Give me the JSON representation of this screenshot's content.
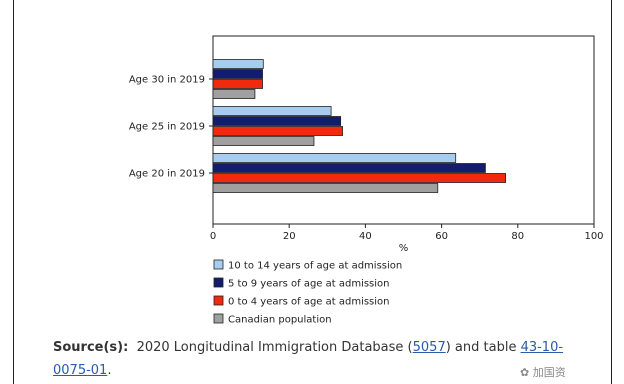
{
  "chart_data": {
    "type": "bar",
    "orientation": "horizontal",
    "categories": [
      "Age 30 in 2019",
      "Age 25 in 2019",
      "Age 20 in 2019"
    ],
    "series": [
      {
        "name": "10 to 14 years of age at admission",
        "color": "#a6cdf0",
        "values": [
          13.2,
          31.0,
          63.7
        ]
      },
      {
        "name": "5 to 9 years of age at admission",
        "color": "#131d6c",
        "values": [
          13.0,
          33.5,
          71.5
        ]
      },
      {
        "name": "0 to 4 years of age at admission",
        "color": "#f02a0c",
        "values": [
          13.0,
          34.0,
          76.8
        ]
      },
      {
        "name": "Canadian population",
        "color": "#a0a0a0",
        "values": [
          11.0,
          26.5,
          59.0
        ]
      }
    ],
    "xlabel": "%",
    "xlim": [
      0,
      100
    ],
    "xticks": [
      "0",
      "20",
      "40",
      "60",
      "80",
      "100"
    ],
    "grid": false,
    "legend": "bottom"
  },
  "source": {
    "label": "Source(s):",
    "text_before": "2020 Longitudinal Immigration Database (",
    "link1": "5057",
    "text_mid": ") and table ",
    "link2": "43-10-0075-01",
    "text_after": "."
  },
  "watermark": {
    "icon": "wechat-icon",
    "text": "加国资"
  }
}
